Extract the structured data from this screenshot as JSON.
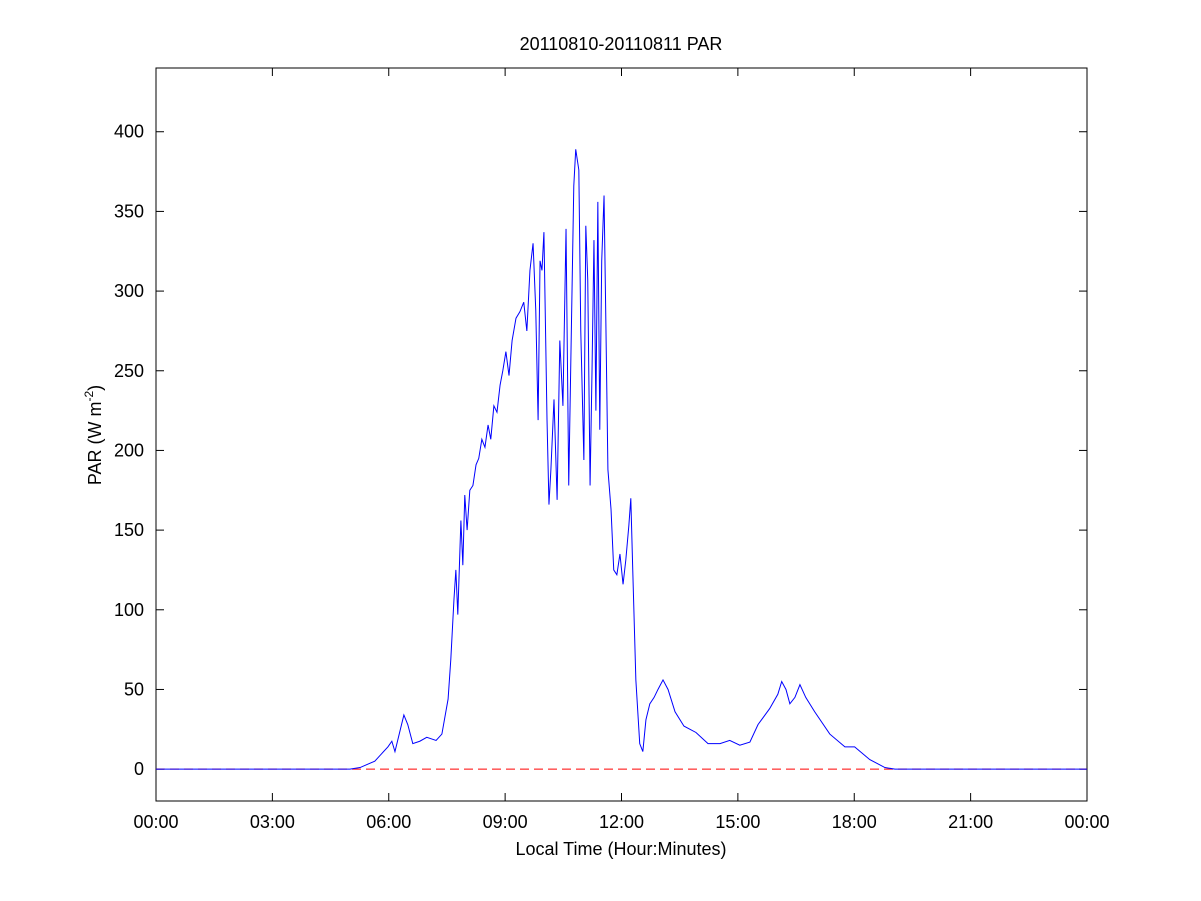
{
  "chart_data": {
    "type": "line",
    "title": "20110810-20110811 PAR",
    "xlabel": "Local Time (Hour:Minutes)",
    "ylabel": {
      "text": "PAR (W m",
      "superscript": "-2",
      "suffix": ")"
    },
    "xlim": [
      0,
      24
    ],
    "xticks": [
      {
        "value": 0,
        "label": "00:00"
      },
      {
        "value": 3,
        "label": "03:00"
      },
      {
        "value": 6,
        "label": "06:00"
      },
      {
        "value": 9,
        "label": "09:00"
      },
      {
        "value": 12,
        "label": "12:00"
      },
      {
        "value": 15,
        "label": "15:00"
      },
      {
        "value": 18,
        "label": "18:00"
      },
      {
        "value": 21,
        "label": "21:00"
      },
      {
        "value": 24,
        "label": "00:00"
      }
    ],
    "ylim": [
      -20,
      440
    ],
    "yticks": [
      0,
      50,
      100,
      150,
      200,
      250,
      300,
      350,
      400
    ],
    "grid": false,
    "reference_line": {
      "value": 0,
      "color": "#ff0000"
    },
    "x": [
      0,
      5.0,
      5.26,
      5.64,
      5.98,
      6.08,
      6.16,
      6.29,
      6.39,
      6.49,
      6.62,
      6.8,
      6.98,
      7.22,
      7.37,
      7.53,
      7.6,
      7.68,
      7.73,
      7.78,
      7.86,
      7.91,
      7.96,
      8.02,
      8.09,
      8.17,
      8.25,
      8.32,
      8.4,
      8.48,
      8.56,
      8.63,
      8.71,
      8.79,
      8.87,
      8.94,
      9.02,
      9.1,
      9.18,
      9.28,
      9.38,
      9.48,
      9.56,
      9.64,
      9.72,
      9.79,
      9.85,
      9.9,
      9.95,
      10.0,
      10.08,
      10.13,
      10.18,
      10.26,
      10.34,
      10.41,
      10.49,
      10.57,
      10.64,
      10.72,
      10.77,
      10.82,
      10.9,
      10.95,
      11.03,
      11.08,
      11.13,
      11.19,
      11.24,
      11.29,
      11.34,
      11.39,
      11.44,
      11.49,
      11.55,
      11.6,
      11.65,
      11.73,
      11.8,
      11.88,
      11.96,
      12.04,
      12.11,
      12.19,
      12.24,
      12.29,
      12.37,
      12.47,
      12.55,
      12.63,
      12.73,
      12.84,
      12.94,
      13.07,
      13.2,
      13.38,
      13.61,
      13.92,
      14.23,
      14.54,
      14.79,
      15.05,
      15.31,
      15.52,
      15.82,
      16.03,
      16.13,
      16.24,
      16.34,
      16.47,
      16.6,
      16.75,
      16.98,
      17.37,
      17.76,
      18.01,
      18.4,
      18.79,
      19.05,
      24
    ],
    "series": [
      {
        "name": "PAR",
        "color": "#0000ff",
        "values": [
          0,
          0,
          1,
          5,
          14,
          17.5,
          11,
          24,
          34,
          28,
          16,
          17.5,
          20,
          18,
          22,
          44,
          69,
          106,
          125,
          97,
          156,
          128,
          172,
          150,
          175,
          178,
          191,
          195,
          207,
          202,
          216,
          207,
          228,
          224,
          241,
          250,
          262,
          247,
          269,
          283,
          287,
          293,
          275,
          313,
          330,
          288,
          219,
          319,
          313,
          337,
          219,
          166,
          188,
          232,
          169,
          269,
          228,
          339,
          178,
          294,
          366,
          389,
          376,
          275,
          194,
          341,
          307,
          178,
          250,
          332,
          225,
          356,
          213,
          319,
          360,
          275,
          188,
          163,
          125,
          122,
          135,
          116,
          131,
          153,
          170,
          125,
          56,
          16,
          11,
          31,
          41,
          45,
          50,
          56,
          50,
          36,
          27,
          23,
          16,
          16,
          18,
          15,
          17,
          28,
          38,
          47,
          55,
          50,
          41,
          45,
          53,
          45,
          36,
          22,
          14,
          14,
          6,
          1,
          0,
          0
        ]
      }
    ]
  }
}
